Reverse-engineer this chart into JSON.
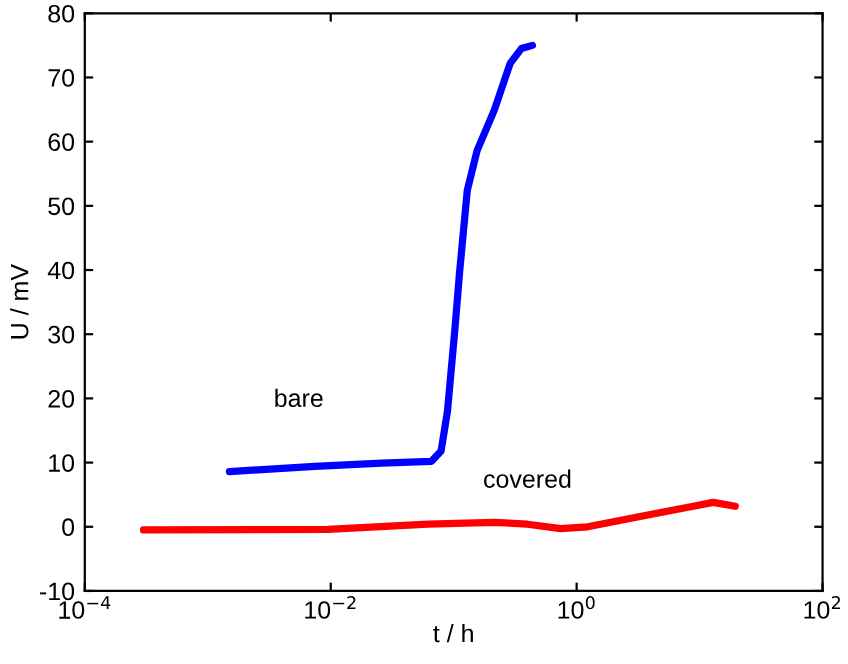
{
  "chart_data": {
    "type": "line",
    "xlabel": "t / h",
    "ylabel": "U / mV",
    "log": "x",
    "xlim": [
      0.0001,
      100
    ],
    "xticks": [
      {
        "value": 0.0001,
        "label": "10$^{−4}$"
      },
      {
        "value": 0.01,
        "label": "10$^{−2}$"
      },
      {
        "value": 1,
        "label": "10$^{0}$"
      },
      {
        "value": 100,
        "label": "10$^{2}$"
      }
    ],
    "ylim": [
      -10,
      80
    ],
    "yticks": [
      -10,
      0,
      10,
      20,
      30,
      40,
      50,
      60,
      70,
      80
    ],
    "grid": false,
    "legend": false,
    "series": [
      {
        "name": "bare",
        "color": "#0000ff",
        "x": [
          0.0015,
          0.0074,
          0.026,
          0.066,
          0.079,
          0.089,
          0.102,
          0.112,
          0.129,
          0.155,
          0.214,
          0.288,
          0.355,
          0.437
        ],
        "values": [
          8.6,
          9.4,
          9.9,
          10.2,
          11.8,
          18.0,
          30.5,
          39.9,
          52.4,
          58.6,
          64.9,
          72.2,
          74.5,
          75.0
        ]
      },
      {
        "name": "covered",
        "color": "#ff0000",
        "x": [
          0.0003,
          0.0095,
          0.062,
          0.214,
          0.398,
          0.741,
          1.23,
          3.7,
          8.9,
          12.9,
          19.5
        ],
        "values": [
          -0.5,
          -0.4,
          0.4,
          0.7,
          0.4,
          -0.3,
          0.0,
          1.8,
          3.2,
          3.8,
          3.2
        ]
      }
    ]
  }
}
